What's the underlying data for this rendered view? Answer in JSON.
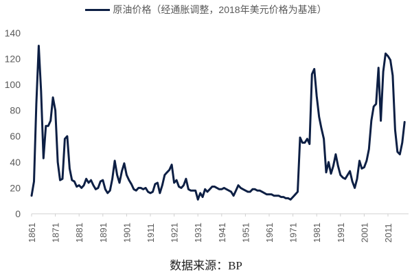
{
  "chart_data": {
    "type": "line",
    "title": "",
    "xlabel": "",
    "ylabel": "",
    "legend": [
      {
        "name": "原油价格（经通胀调整，2018年美元价格为基准）",
        "color": "#0d1f44"
      }
    ],
    "legend_position": "top",
    "ylim": [
      0,
      140
    ],
    "yticks": [
      0,
      20,
      40,
      60,
      80,
      100,
      120,
      140
    ],
    "xticks": [
      "1861",
      "1871",
      "1881",
      "1891",
      "1901",
      "1911",
      "1921",
      "1931",
      "1941",
      "1951",
      "1961",
      "1971",
      "1981",
      "1991",
      "2001",
      "2011"
    ],
    "xrange": [
      1861,
      2019
    ],
    "grid": false,
    "series": [
      {
        "name": "原油价格（经通胀调整，2018年美元价格为基准）",
        "color": "#0d1f44",
        "x": [
          1861,
          1862,
          1863,
          1864,
          1865,
          1866,
          1867,
          1868,
          1869,
          1870,
          1871,
          1872,
          1873,
          1874,
          1875,
          1876,
          1877,
          1878,
          1879,
          1880,
          1881,
          1882,
          1883,
          1884,
          1885,
          1886,
          1887,
          1888,
          1889,
          1890,
          1891,
          1892,
          1893,
          1894,
          1895,
          1896,
          1897,
          1898,
          1899,
          1900,
          1901,
          1902,
          1903,
          1904,
          1905,
          1906,
          1907,
          1908,
          1909,
          1910,
          1911,
          1912,
          1913,
          1914,
          1915,
          1916,
          1917,
          1918,
          1919,
          1920,
          1921,
          1922,
          1923,
          1924,
          1925,
          1926,
          1927,
          1928,
          1929,
          1930,
          1931,
          1932,
          1933,
          1934,
          1935,
          1936,
          1937,
          1938,
          1939,
          1940,
          1941,
          1942,
          1943,
          1944,
          1945,
          1946,
          1947,
          1948,
          1949,
          1950,
          1951,
          1952,
          1953,
          1954,
          1955,
          1956,
          1957,
          1958,
          1959,
          1960,
          1961,
          1962,
          1963,
          1964,
          1965,
          1966,
          1967,
          1968,
          1969,
          1970,
          1971,
          1972,
          1973,
          1974,
          1975,
          1976,
          1977,
          1978,
          1979,
          1980,
          1981,
          1982,
          1983,
          1984,
          1985,
          1986,
          1987,
          1988,
          1989,
          1990,
          1991,
          1992,
          1993,
          1994,
          1995,
          1996,
          1997,
          1998,
          1999,
          2000,
          2001,
          2002,
          2003,
          2004,
          2005,
          2006,
          2007,
          2008,
          2009,
          2010,
          2011,
          2012,
          2013,
          2014,
          2015,
          2016,
          2017,
          2018
        ],
        "values": [
          14,
          25,
          85,
          130,
          95,
          43,
          68,
          68,
          72,
          90,
          80,
          40,
          26,
          27,
          58,
          60,
          35,
          26,
          25,
          21,
          22,
          20,
          22,
          27,
          24,
          26,
          22,
          19,
          20,
          25,
          26,
          19,
          16,
          18,
          27,
          41,
          30,
          24,
          33,
          39,
          30,
          26,
          23,
          19,
          18,
          20,
          20,
          19,
          20,
          17,
          16,
          17,
          23,
          24,
          16,
          22,
          30,
          32,
          34,
          38,
          24,
          26,
          21,
          20,
          22,
          27,
          19,
          18,
          18,
          18,
          11,
          16,
          13,
          19,
          17,
          19,
          21,
          21,
          20,
          19,
          19,
          20,
          19,
          18,
          17,
          14,
          18,
          22,
          20,
          19,
          18,
          17,
          17,
          19,
          19,
          18,
          18,
          17,
          16,
          15,
          15,
          15,
          14,
          14,
          14,
          13,
          13,
          12,
          12,
          11,
          13,
          15,
          17,
          59,
          55,
          55,
          58,
          54,
          108,
          112,
          91,
          75,
          66,
          58,
          32,
          40,
          31,
          37,
          46,
          37,
          30,
          28,
          27,
          30,
          33,
          25,
          20,
          27,
          41,
          35,
          36,
          41,
          50,
          72,
          83,
          85,
          113,
          72,
          110,
          124,
          122,
          119,
          107,
          65,
          48,
          46,
          55,
          71
        ]
      }
    ]
  },
  "legend_label": "原油价格（经通胀调整，2018年美元价格为基准）",
  "source_label": "数据来源：BP"
}
